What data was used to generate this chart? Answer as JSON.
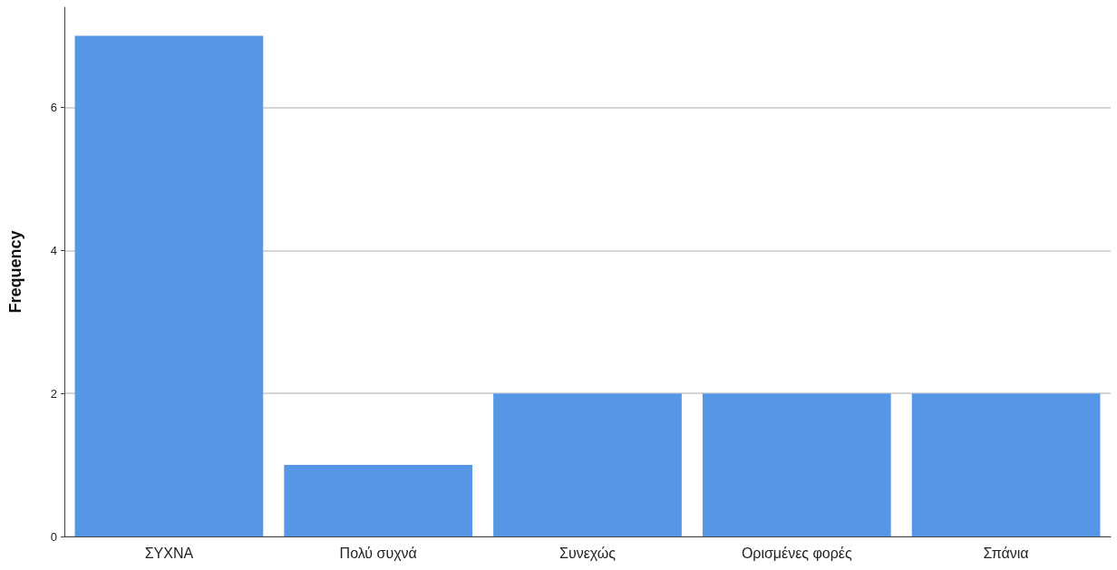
{
  "chart_data": {
    "type": "bar",
    "ylabel": "Frequency",
    "categories": [
      "ΣΥΧΝΑ",
      "Πολύ συχνά",
      "Συνεχώς",
      "Ορισμένες φορές",
      "Σπάνια"
    ],
    "values": [
      7,
      1,
      2,
      2,
      2
    ],
    "color": "#5596e5",
    "ylim": [
      0,
      7.4
    ],
    "yticks": [
      0,
      2,
      4,
      6
    ],
    "grid": "y"
  }
}
